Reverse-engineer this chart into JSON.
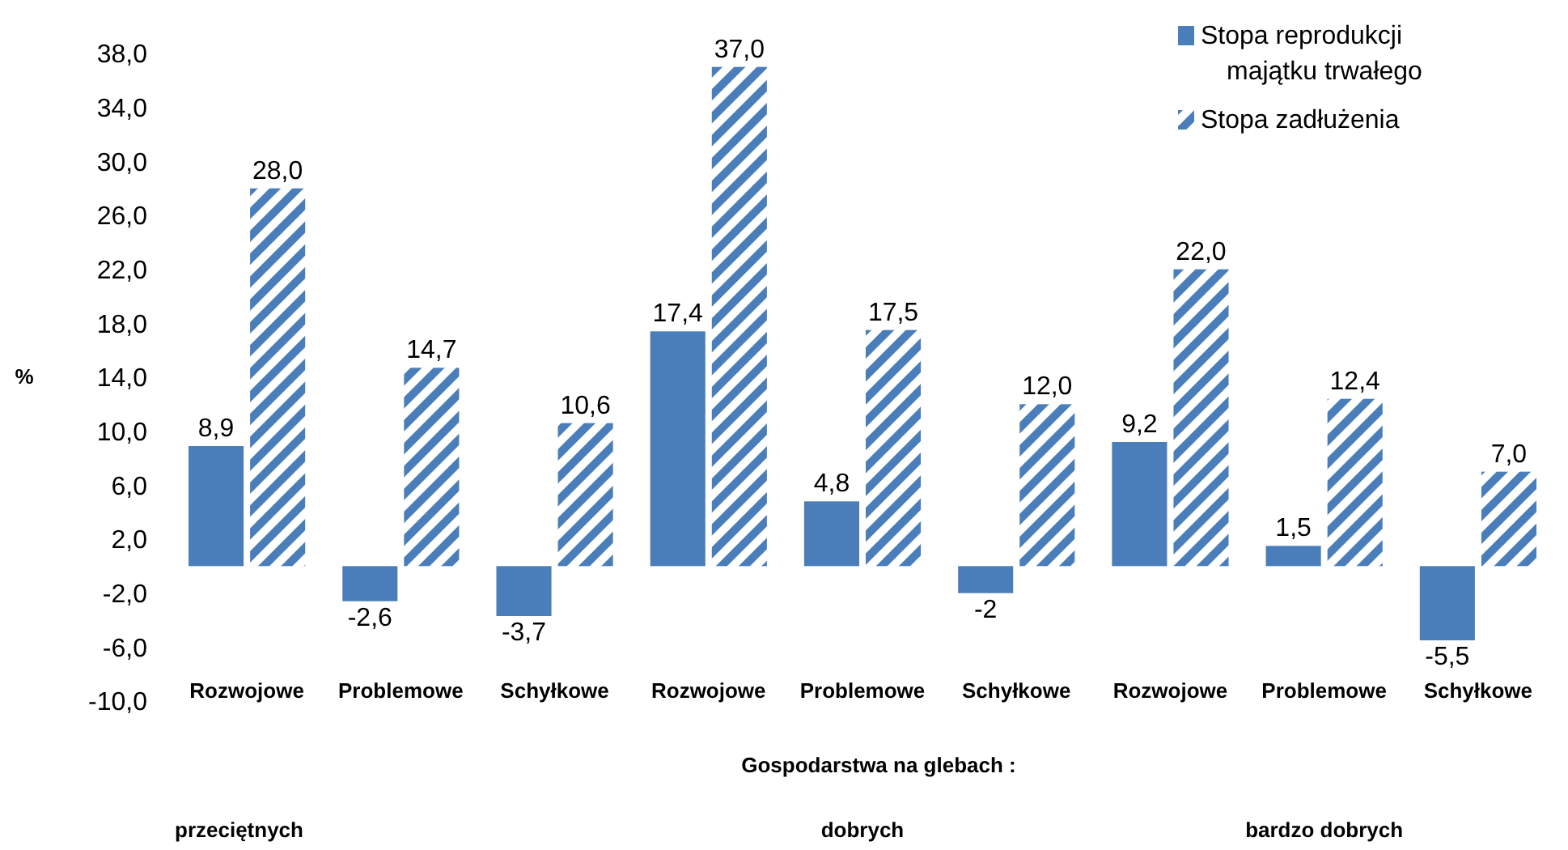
{
  "chart_data": {
    "type": "bar",
    "ylabel": "%",
    "xlabel": "Gospodarstwa na glebach :",
    "categories": [
      "Rozwojowe",
      "Problemowe",
      "Schyłkowe",
      "Rozwojowe",
      "Problemowe",
      "Schyłkowe",
      "Rozwojowe",
      "Problemowe",
      "Schyłkowe"
    ],
    "series": [
      {
        "name": "Stopa reprodukcji majątku trwałego",
        "color": "#4a7ebb",
        "values": [
          8.9,
          -2.6,
          -3.7,
          17.4,
          4.8,
          -2,
          9.2,
          1.5,
          -5.5
        ],
        "value_labels": [
          "8,9",
          "-2,6",
          "-3,7",
          "17,4",
          "4,8",
          "-2",
          "9,2",
          "1,5",
          "-5,5"
        ]
      },
      {
        "name": "Stopa zadłużenia",
        "color": "#4a7ebb",
        "values": [
          28.0,
          14.7,
          10.6,
          37.0,
          17.5,
          12.0,
          22.0,
          12.4,
          7.0
        ],
        "value_labels": [
          "28,0",
          "14,7",
          "10,6",
          "37,0",
          "17,5",
          "12,0",
          "22,0",
          "12,4",
          "7,0"
        ]
      }
    ],
    "ylim": [
      -10,
      38
    ],
    "yticks": [
      {
        "value": -10,
        "label": "-10,0"
      },
      {
        "value": -6,
        "label": "-6,0"
      },
      {
        "value": -2,
        "label": "-2,0"
      },
      {
        "value": 2,
        "label": "2,0"
      },
      {
        "value": 6,
        "label": "6,0"
      },
      {
        "value": 10,
        "label": "10,0"
      },
      {
        "value": 14,
        "label": "14,0"
      },
      {
        "value": 18,
        "label": "18,0"
      },
      {
        "value": 22,
        "label": "22,0"
      },
      {
        "value": 26,
        "label": "26,0"
      },
      {
        "value": 30,
        "label": "30,0"
      },
      {
        "value": 34,
        "label": "34,0"
      },
      {
        "value": 38,
        "label": "38,0"
      }
    ],
    "grid": false,
    "legend": "top right",
    "annotations": [
      "przeciętnych",
      "dobrych",
      "bardzo dobrych"
    ]
  }
}
